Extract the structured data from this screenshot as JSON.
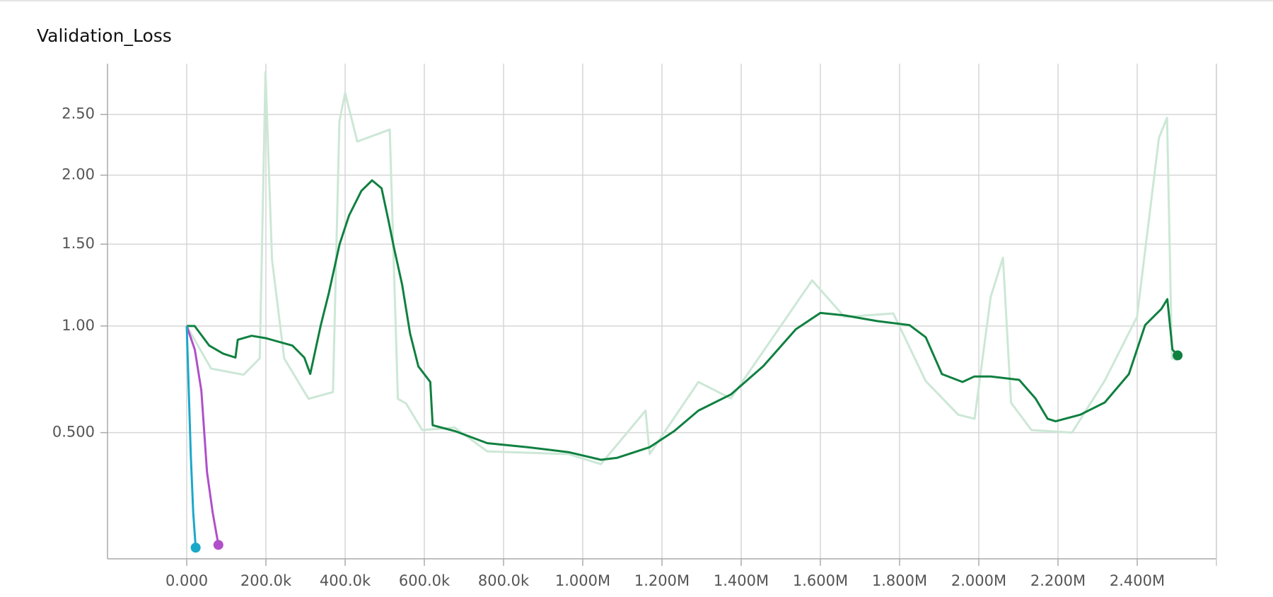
{
  "chart_data": {
    "type": "line",
    "title": "Validation_Loss",
    "yscale": "sqrt",
    "grid": true,
    "xlim": [
      -200000,
      2600000
    ],
    "ylim": [
      0.13,
      2.96
    ],
    "xticks": [
      {
        "value": 0,
        "label": "0.000"
      },
      {
        "value": 200000,
        "label": "200.0k"
      },
      {
        "value": 400000,
        "label": "400.0k"
      },
      {
        "value": 600000,
        "label": "600.0k"
      },
      {
        "value": 800000,
        "label": "800.0k"
      },
      {
        "value": 1000000,
        "label": "1.000M"
      },
      {
        "value": 1200000,
        "label": "1.200M"
      },
      {
        "value": 1400000,
        "label": "1.400M"
      },
      {
        "value": 1600000,
        "label": "1.600M"
      },
      {
        "value": 1800000,
        "label": "1.800M"
      },
      {
        "value": 2000000,
        "label": "2.000M"
      },
      {
        "value": 2200000,
        "label": "2.200M"
      },
      {
        "value": 2400000,
        "label": "2.400M"
      }
    ],
    "yticks": [
      {
        "value": 0.5,
        "label": "0.500"
      },
      {
        "value": 1,
        "label": "1.00"
      },
      {
        "value": 1.5,
        "label": "1.50"
      },
      {
        "value": 2,
        "label": "2.00"
      },
      {
        "value": 2.5,
        "label": "2.50"
      }
    ],
    "series": [
      {
        "color": "#cce7d6",
        "end_marker": false,
        "x": [
          0,
          61500,
          143500,
          184500,
          198900,
          215300,
          246000,
          307600,
          369200,
          385600,
          400000,
          430700,
          512700,
          533200,
          553700,
          594700,
          676700,
          758700,
          963800,
          1045800,
          1158600,
          1168900,
          1292000,
          1374000,
          1579100,
          1661100,
          1784100,
          1866100,
          1948200,
          1989200,
          2030200,
          2061000,
          2081500,
          2132800,
          2235300,
          2317400,
          2399400,
          2454800,
          2475300,
          2487600,
          2502000
        ],
        "values": [
          1.0,
          0.78,
          0.75,
          0.83,
          2.88,
          1.4,
          0.83,
          0.64,
          0.67,
          2.44,
          2.69,
          2.27,
          2.37,
          0.64,
          0.62,
          0.51,
          0.52,
          0.43,
          0.42,
          0.385,
          0.589,
          0.42,
          0.716,
          0.642,
          1.266,
          1.05,
          1.07,
          0.72,
          0.572,
          0.555,
          1.168,
          1.41,
          0.623,
          0.51,
          0.5,
          0.72,
          1.05,
          2.3,
          2.47,
          0.83,
          0.82
        ]
      },
      {
        "color": "#0f8040",
        "end_marker": true,
        "x": [
          0,
          20000,
          57000,
          92000,
          123000,
          129000,
          164000,
          200000,
          267000,
          297000,
          312000,
          338000,
          359000,
          386000,
          410000,
          441000,
          468000,
          492000,
          509000,
          523000,
          544000,
          564000,
          585000,
          615000,
          621000,
          677000,
          759000,
          861000,
          964000,
          1046000,
          1087000,
          1169000,
          1231000,
          1292000,
          1374000,
          1456000,
          1538000,
          1600000,
          1661000,
          1743000,
          1825000,
          1866000,
          1907000,
          1959000,
          1989000,
          2030000,
          2102000,
          2143000,
          2174000,
          2194000,
          2256000,
          2318000,
          2379000,
          2420000,
          2461000,
          2476000,
          2489000,
          2502000
        ],
        "values": [
          1.0,
          1.0,
          0.895,
          0.854,
          0.834,
          0.926,
          0.947,
          0.934,
          0.895,
          0.834,
          0.754,
          1.0,
          1.19,
          1.5,
          1.7,
          1.88,
          1.96,
          1.9,
          1.67,
          1.48,
          1.24,
          0.96,
          0.79,
          0.716,
          0.529,
          0.506,
          0.46,
          0.445,
          0.427,
          0.4,
          0.407,
          0.445,
          0.506,
          0.589,
          0.659,
          0.792,
          0.982,
          1.073,
          1.059,
          1.027,
          1.005,
          0.939,
          0.753,
          0.716,
          0.742,
          0.742,
          0.726,
          0.642,
          0.555,
          0.545,
          0.572,
          0.624,
          0.753,
          1.005,
          1.096,
          1.153,
          0.875,
          0.845
        ]
      },
      {
        "color": "#b04fc9",
        "end_marker": true,
        "x": [
          0,
          20500,
          36900,
          51300,
          65600,
          80000
        ],
        "values": [
          1.0,
          0.874,
          0.677,
          0.359,
          0.238,
          0.159
        ]
      },
      {
        "color": "#1aa8c9",
        "end_marker": true,
        "x": [
          0,
          10300,
          16400,
          22600
        ],
        "values": [
          1.0,
          0.415,
          0.238,
          0.153
        ]
      }
    ]
  }
}
